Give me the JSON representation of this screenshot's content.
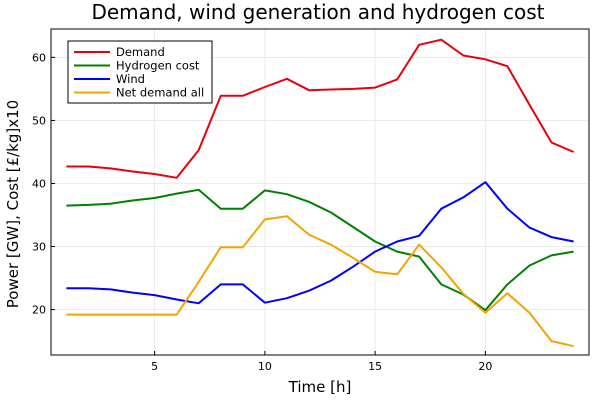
{
  "chart_data": {
    "type": "line",
    "title": "Demand, wind generation and hydrogen cost",
    "xlabel": "Time [h]",
    "ylabel": "Power [GW], Cost [£/kg]x10",
    "xlim": [
      0.3,
      24.7
    ],
    "ylim": [
      12.8,
      64.5
    ],
    "xticks": [
      5,
      10,
      15,
      20
    ],
    "yticks": [
      20,
      30,
      40,
      50,
      60
    ],
    "grid": true,
    "legend_position": "top-left",
    "x": [
      1,
      2,
      3,
      4,
      5,
      6,
      7,
      8,
      9,
      10,
      11,
      12,
      13,
      14,
      15,
      16,
      17,
      18,
      19,
      20,
      21,
      22,
      23,
      24
    ],
    "series": [
      {
        "name": "Demand",
        "color": "#e8000b",
        "values": [
          42.7,
          42.7,
          42.4,
          41.9,
          41.5,
          40.9,
          45.3,
          53.9,
          53.9,
          55.3,
          56.6,
          54.8,
          54.9,
          55.0,
          55.2,
          56.5,
          62.0,
          62.8,
          60.3,
          59.7,
          58.6,
          52.5,
          46.5,
          45.0
        ]
      },
      {
        "name": "Hydrogen cost",
        "color": "#008000",
        "values": [
          36.5,
          36.6,
          36.8,
          37.3,
          37.7,
          38.4,
          39.0,
          36.0,
          36.0,
          38.9,
          38.3,
          37.1,
          35.4,
          33.1,
          30.8,
          29.2,
          28.4,
          24.0,
          22.4,
          19.9,
          24.0,
          27.0,
          28.6,
          29.2
        ]
      },
      {
        "name": "Wind",
        "color": "#0000ff",
        "values": [
          23.4,
          23.4,
          23.2,
          22.7,
          22.3,
          21.6,
          21.0,
          24.0,
          24.0,
          21.1,
          21.8,
          23.0,
          24.6,
          26.8,
          29.2,
          30.8,
          31.7,
          36.0,
          37.8,
          40.2,
          36.0,
          33.0,
          31.5,
          30.8
        ]
      },
      {
        "name": "Net demand all",
        "color": "#f5a300",
        "values": [
          19.2,
          19.2,
          19.2,
          19.2,
          19.2,
          19.2,
          24.4,
          29.9,
          29.9,
          34.3,
          34.8,
          31.9,
          30.3,
          28.2,
          26.0,
          25.6,
          30.3,
          26.7,
          22.5,
          19.5,
          22.6,
          19.5,
          15.0,
          14.2
        ]
      }
    ]
  }
}
